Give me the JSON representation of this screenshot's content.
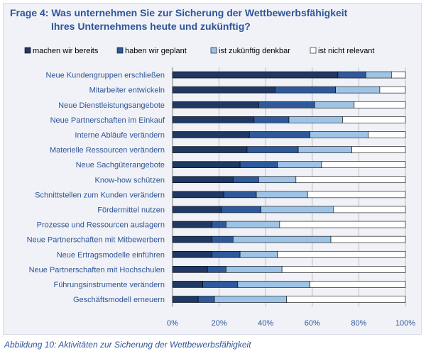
{
  "caption": "Abbildung 10: Aktivitäten zur Sicherung der Wettbewerbsfähigkeit",
  "chart_data": {
    "type": "bar",
    "orientation": "horizontal",
    "stacked": true,
    "title_line1": "Frage 4: Was unternehmen Sie zur Sicherung der Wettbewerbsfähigkeit",
    "title_line2": "Ihres Unternehmens heute und zukünftig?",
    "categories": [
      "Neue Kundengruppen erschließen",
      "Mitarbeiter entwickeln",
      "Neue Dienstleistungsangebote",
      "Neue Partnerschaften im Einkauf",
      "Interne Abläufe verändern",
      "Materielle Ressourcen verändern",
      "Neue Sachgüterangebote",
      "Know-how schützen",
      "Schnittstellen zum Kunden verändern",
      "Fördermittel nutzen",
      "Prozesse und Ressourcen auslagern",
      "Neue Partnerschaften mit Mitbewerbern",
      "Neue Ertragsmodelle einführen",
      "Neue Partnerschaften mit Hochschulen",
      "Führungsinstrumente verändern",
      "Geschäftsmodell erneuern"
    ],
    "series": [
      {
        "name": "machen wir bereits",
        "color": "#1f3864",
        "values": [
          71,
          44,
          37,
          35,
          33,
          32,
          29,
          26,
          22,
          21,
          17,
          17,
          17,
          15,
          13,
          11
        ]
      },
      {
        "name": "haben wir geplant",
        "color": "#2e5a9c",
        "values": [
          12,
          26,
          24,
          15,
          26,
          22,
          16,
          11,
          14,
          17,
          6,
          9,
          12,
          8,
          15,
          7
        ]
      },
      {
        "name": "ist zukünftig denkbar",
        "color": "#9dc3e6",
        "values": [
          11,
          19,
          17,
          23,
          25,
          23,
          19,
          16,
          22,
          31,
          23,
          42,
          16,
          24,
          31,
          31
        ]
      },
      {
        "name": "ist nicht relevant",
        "color": "#ffffff",
        "values": [
          6,
          11,
          22,
          27,
          16,
          23,
          36,
          47,
          42,
          31,
          54,
          32,
          55,
          53,
          41,
          51
        ]
      }
    ],
    "x_ticks": [
      "0%",
      "20%",
      "40%",
      "60%",
      "80%",
      "100%"
    ],
    "xlim": [
      0,
      100
    ],
    "grid": "vertical",
    "legend_position": "top"
  }
}
